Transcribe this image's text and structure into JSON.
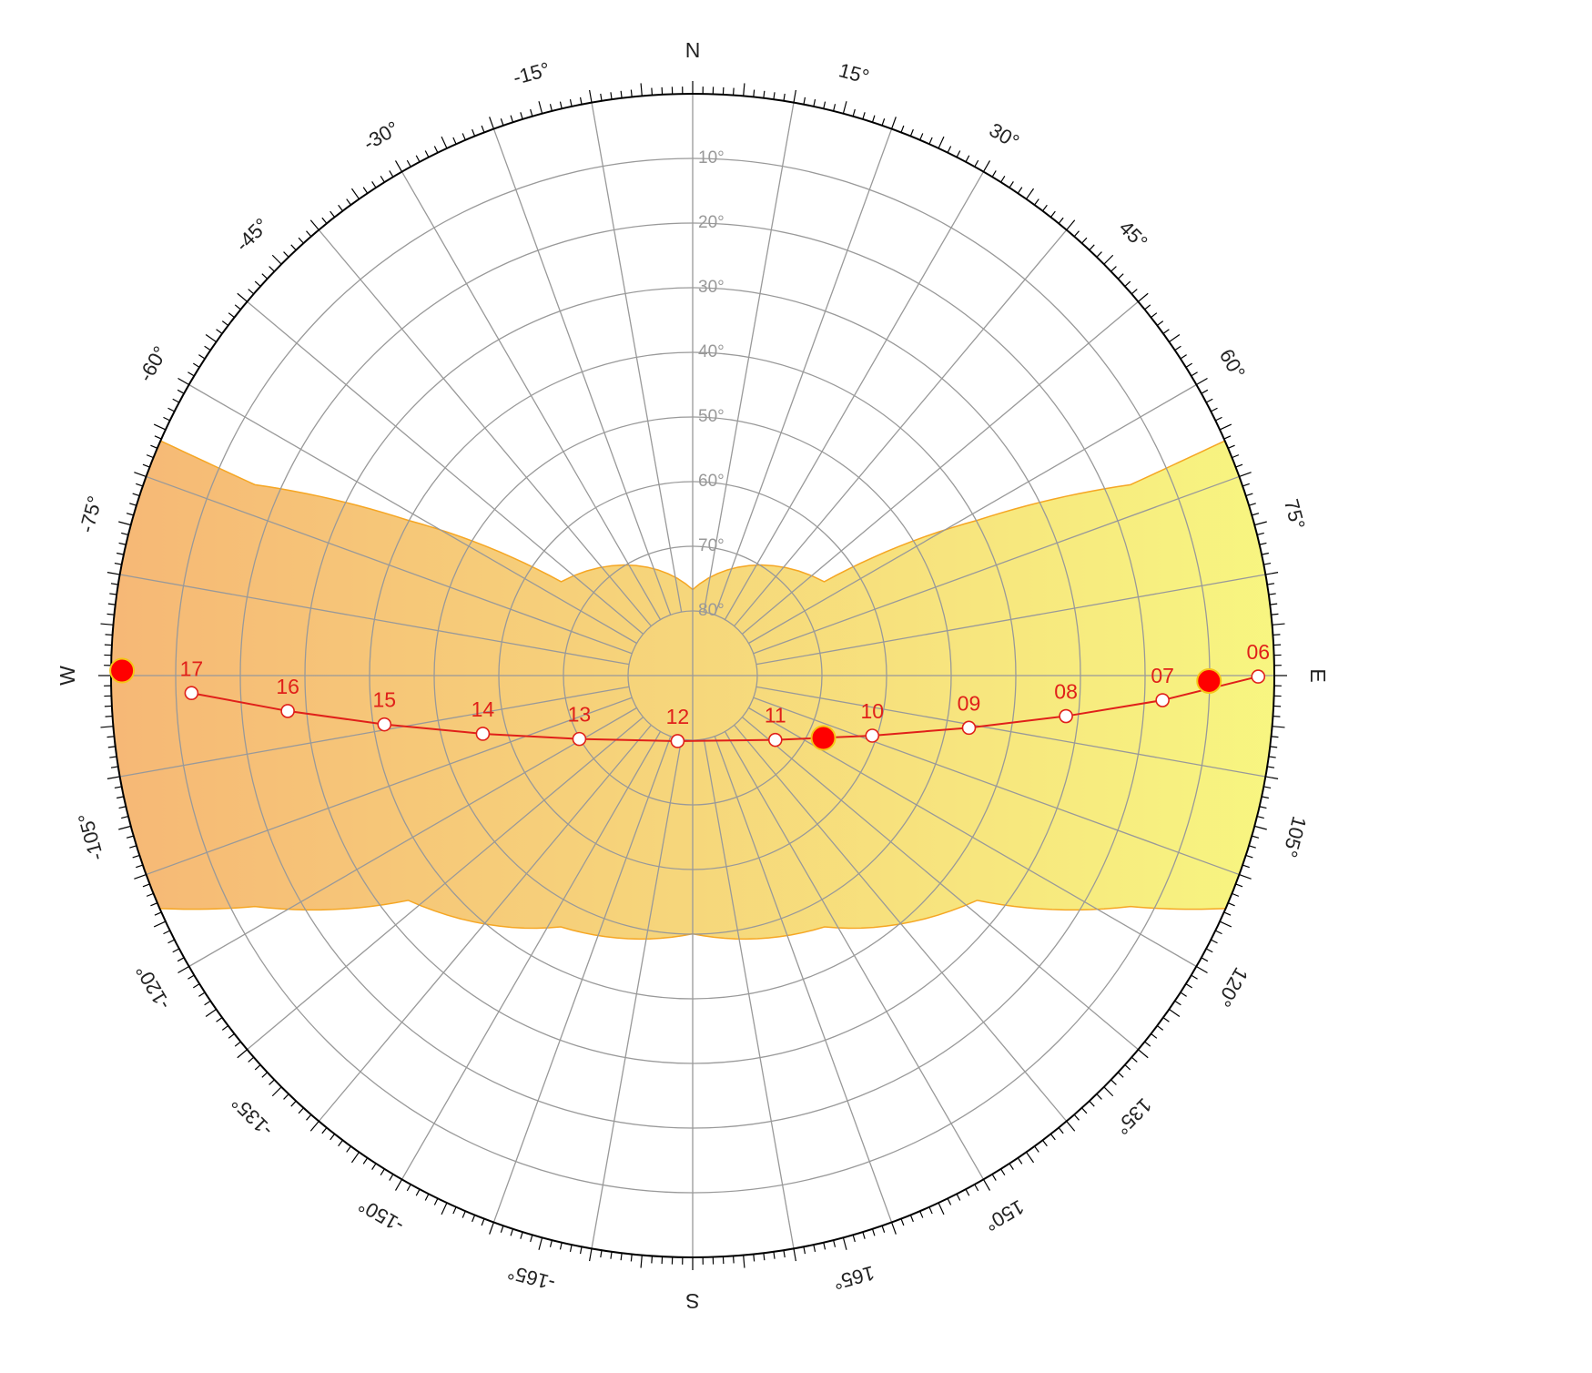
{
  "chart_data": {
    "type": "sunpath",
    "compass": {
      "labels": [
        "N",
        "E",
        "S",
        "W"
      ],
      "azimuths": [
        0,
        90,
        180,
        -90
      ]
    },
    "azimuth_ticks": [
      {
        "value": -165,
        "label": "-165°"
      },
      {
        "value": -150,
        "label": "-150°"
      },
      {
        "value": -135,
        "label": "-135°"
      },
      {
        "value": -120,
        "label": "-120°"
      },
      {
        "value": -105,
        "label": "-105°"
      },
      {
        "value": -75,
        "label": "-75°"
      },
      {
        "value": -60,
        "label": "-60°"
      },
      {
        "value": -45,
        "label": "-45°"
      },
      {
        "value": -30,
        "label": "-30°"
      },
      {
        "value": -15,
        "label": "-15°"
      },
      {
        "value": 15,
        "label": "15°"
      },
      {
        "value": 30,
        "label": "30°"
      },
      {
        "value": 45,
        "label": "45°"
      },
      {
        "value": 60,
        "label": "60°"
      },
      {
        "value": 75,
        "label": "75°"
      },
      {
        "value": 105,
        "label": "105°"
      },
      {
        "value": 120,
        "label": "120°"
      },
      {
        "value": 135,
        "label": "135°"
      },
      {
        "value": 150,
        "label": "150°"
      },
      {
        "value": 165,
        "label": "165°"
      }
    ],
    "azimuth_minor_step": 1,
    "azimuth_major_step": 5,
    "azimuth_grid_step": 10,
    "altitude_ticks": [
      {
        "value": 10,
        "label": "10°"
      },
      {
        "value": 20,
        "label": "20°"
      },
      {
        "value": 30,
        "label": "30°"
      },
      {
        "value": 40,
        "label": "40°"
      },
      {
        "value": 50,
        "label": "50°"
      },
      {
        "value": 60,
        "label": "60°"
      },
      {
        "value": 70,
        "label": "70°"
      },
      {
        "value": 80,
        "label": "80°"
      }
    ],
    "altitude_lim": [
      0,
      90
    ],
    "band": {
      "color_start": "#f5b46e",
      "color_end": "#f7f57a",
      "edge_color": "#f5a623",
      "upper": {
        "azimuth": [
          -66.2,
          -66.45,
          -61.4,
          -54.5,
          0,
          54.5,
          61.4,
          66.45,
          66.2
        ],
        "altitude": [
          0,
          16.1,
          39.8,
          65,
          76.7,
          65,
          39.8,
          16.1,
          0
        ]
      },
      "lower": {
        "azimuth": [
          -113.6,
          -117.8,
          -128.3,
          -152.3,
          180,
          152.3,
          128.3,
          117.8,
          113.6
        ],
        "altitude": [
          0,
          13.4,
          33.9,
          46.1,
          50.05,
          46.1,
          33.9,
          13.4,
          0
        ]
      }
    },
    "sun_path": {
      "color": "#e0201a",
      "hours": [
        "06",
        "07",
        "08",
        "09",
        "10",
        "11",
        "12",
        "13",
        "14",
        "15",
        "16",
        "17"
      ],
      "azimuth": [
        90.1,
        93.0,
        96.2,
        100.7,
        108.5,
        127.9,
        -167,
        -119.2,
        -105.5,
        -99.0,
        -95.0,
        -92.0
      ],
      "altitude": [
        2.5,
        17.2,
        31.9,
        46.5,
        60.7,
        73.8,
        79.6,
        69.9,
        56.3,
        41.7,
        27.1,
        12.4
      ]
    },
    "sun_events": {
      "color": "#ff0000",
      "azimuth": [
        90.6,
        115.5,
        -89.5
      ],
      "altitude": [
        10.1,
        67.6,
        1.7
      ]
    }
  }
}
